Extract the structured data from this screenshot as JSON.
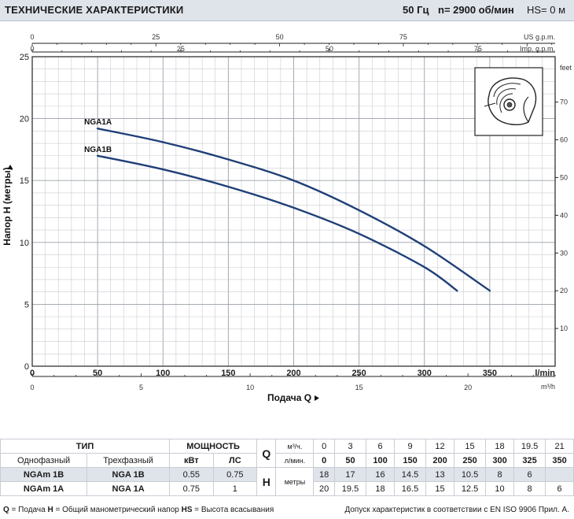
{
  "header": {
    "title": "ТЕХНИЧЕСКИЕ ХАРАКТЕРИСТИКИ",
    "freq": "50 Гц",
    "speed": "n= 2900  об/мин",
    "hs": "HS= 0 м"
  },
  "chart_data": {
    "type": "line",
    "x_lpm_ticks": [
      0,
      50,
      100,
      150,
      200,
      250,
      300,
      350
    ],
    "x_lpm_unit": "l/min",
    "x_m3h_ticks": [
      0,
      5,
      10,
      15,
      20
    ],
    "x_m3h_unit": "m³/h",
    "usgpm_ticks": [
      0,
      25,
      50,
      75
    ],
    "usgpm_unit": "US g.p.m.",
    "impgpm_ticks": [
      0,
      25,
      50,
      75
    ],
    "impgpm_unit": "Imp. g.p.m.",
    "y_m_ticks": [
      0,
      5,
      10,
      15,
      20,
      25
    ],
    "y_feet_ticks": [
      10,
      20,
      30,
      40,
      50,
      60,
      70
    ],
    "y_feet_unit": "feet",
    "xlabel": "Подача  Q",
    "ylabel": "Напор  H  (метры)",
    "xlim": [
      0,
      400
    ],
    "ylim": [
      0,
      25
    ],
    "series": [
      {
        "name": "NGA1A",
        "x": [
          50,
          100,
          150,
          200,
          250,
          300,
          350
        ],
        "y": [
          19.2,
          18.1,
          16.7,
          15.0,
          12.6,
          9.7,
          6.1
        ]
      },
      {
        "name": "NGA1B",
        "x": [
          50,
          100,
          150,
          200,
          250,
          300,
          325
        ],
        "y": [
          17.0,
          15.9,
          14.5,
          12.8,
          10.7,
          8.0,
          6.1
        ]
      }
    ]
  },
  "table": {
    "type_header": "ТИП",
    "power_header": "МОЩНОСТЬ",
    "single_phase": "Однофазный",
    "three_phase": "Трехфазный",
    "kw": "кВт",
    "hp": "ЛС",
    "q_symbol": "Q",
    "h_symbol": "H",
    "q_unit_m3": "м³/ч.",
    "q_unit_lpm": "л/мин.",
    "h_unit": "метры",
    "q_m3h": [
      "0",
      "3",
      "6",
      "9",
      "12",
      "15",
      "18",
      "19.5",
      "21"
    ],
    "q_lpm": [
      "0",
      "50",
      "100",
      "150",
      "200",
      "250",
      "300",
      "325",
      "350"
    ],
    "rows": [
      {
        "single": "NGAm 1B",
        "three": "NGA 1B",
        "kw": "0.55",
        "hp": "0.75",
        "h": [
          "18",
          "17",
          "16",
          "14.5",
          "13",
          "10.5",
          "8",
          "6",
          ""
        ]
      },
      {
        "single": "NGAm 1A",
        "three": "NGA 1A",
        "kw": "0.75",
        "hp": "1",
        "h": [
          "20",
          "19.5",
          "18",
          "16.5",
          "15",
          "12.5",
          "10",
          "8",
          "6"
        ]
      }
    ]
  },
  "footer": {
    "legend_q": "Q",
    "legend_q_text": " = Подача  ",
    "legend_h": "H",
    "legend_h_text": " = Общий манометрический напор  ",
    "legend_hs": "HS",
    "legend_hs_text": " = Высота всасывания",
    "note": "Допуск характеристик в соответствии с EN ISO 9906 Прил. А."
  },
  "impeller_icon": "impeller-icon"
}
